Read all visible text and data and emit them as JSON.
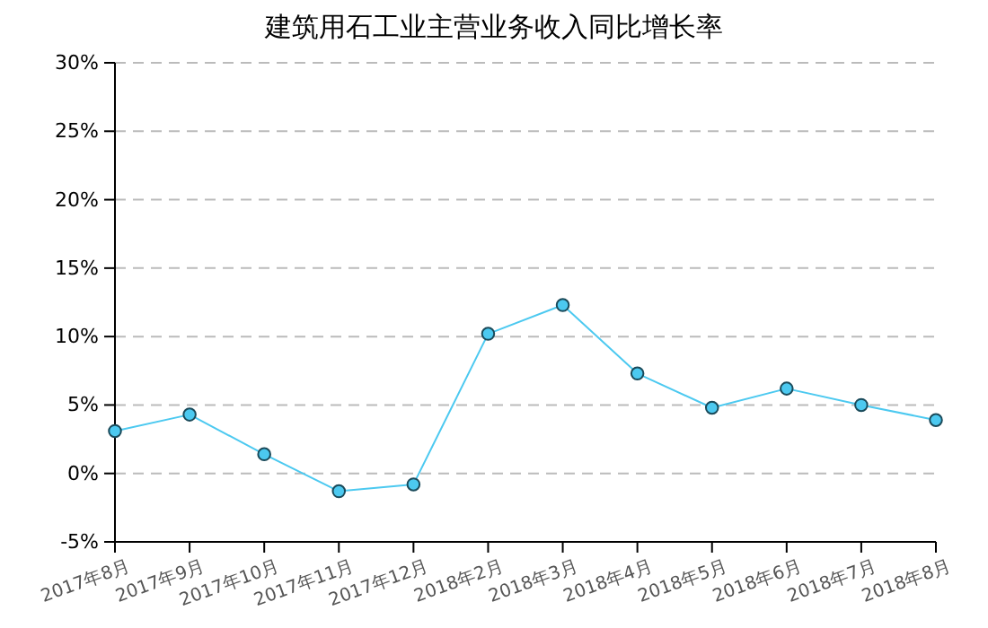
{
  "chart_data": {
    "type": "line",
    "title": "建筑用石工业主营业务收入同比增长率",
    "categories": [
      "2017年8月",
      "2017年9月",
      "2017年10月",
      "2017年11月",
      "2017年12月",
      "2018年2月",
      "2018年3月",
      "2018年4月",
      "2018年5月",
      "2018年6月",
      "2018年7月",
      "2018年8月"
    ],
    "series": [
      {
        "color": "#4cc9f0",
        "values": [
          3.1,
          4.3,
          1.4,
          -1.3,
          -0.8,
          10.2,
          12.3,
          7.3,
          4.8,
          6.2,
          5.0,
          3.9
        ]
      }
    ],
    "ylim": [
      -5,
      30
    ],
    "yticks": [
      {
        "value": -5,
        "label": "-5%"
      },
      {
        "value": 0,
        "label": "0%"
      },
      {
        "value": 5,
        "label": "5%"
      },
      {
        "value": 10,
        "label": "10%"
      },
      {
        "value": 15,
        "label": "15%"
      },
      {
        "value": 20,
        "label": "20%"
      },
      {
        "value": 25,
        "label": "25%"
      },
      {
        "value": 30,
        "label": "30%"
      }
    ],
    "grid": "y",
    "marker": "circle",
    "line_style": "solid"
  }
}
